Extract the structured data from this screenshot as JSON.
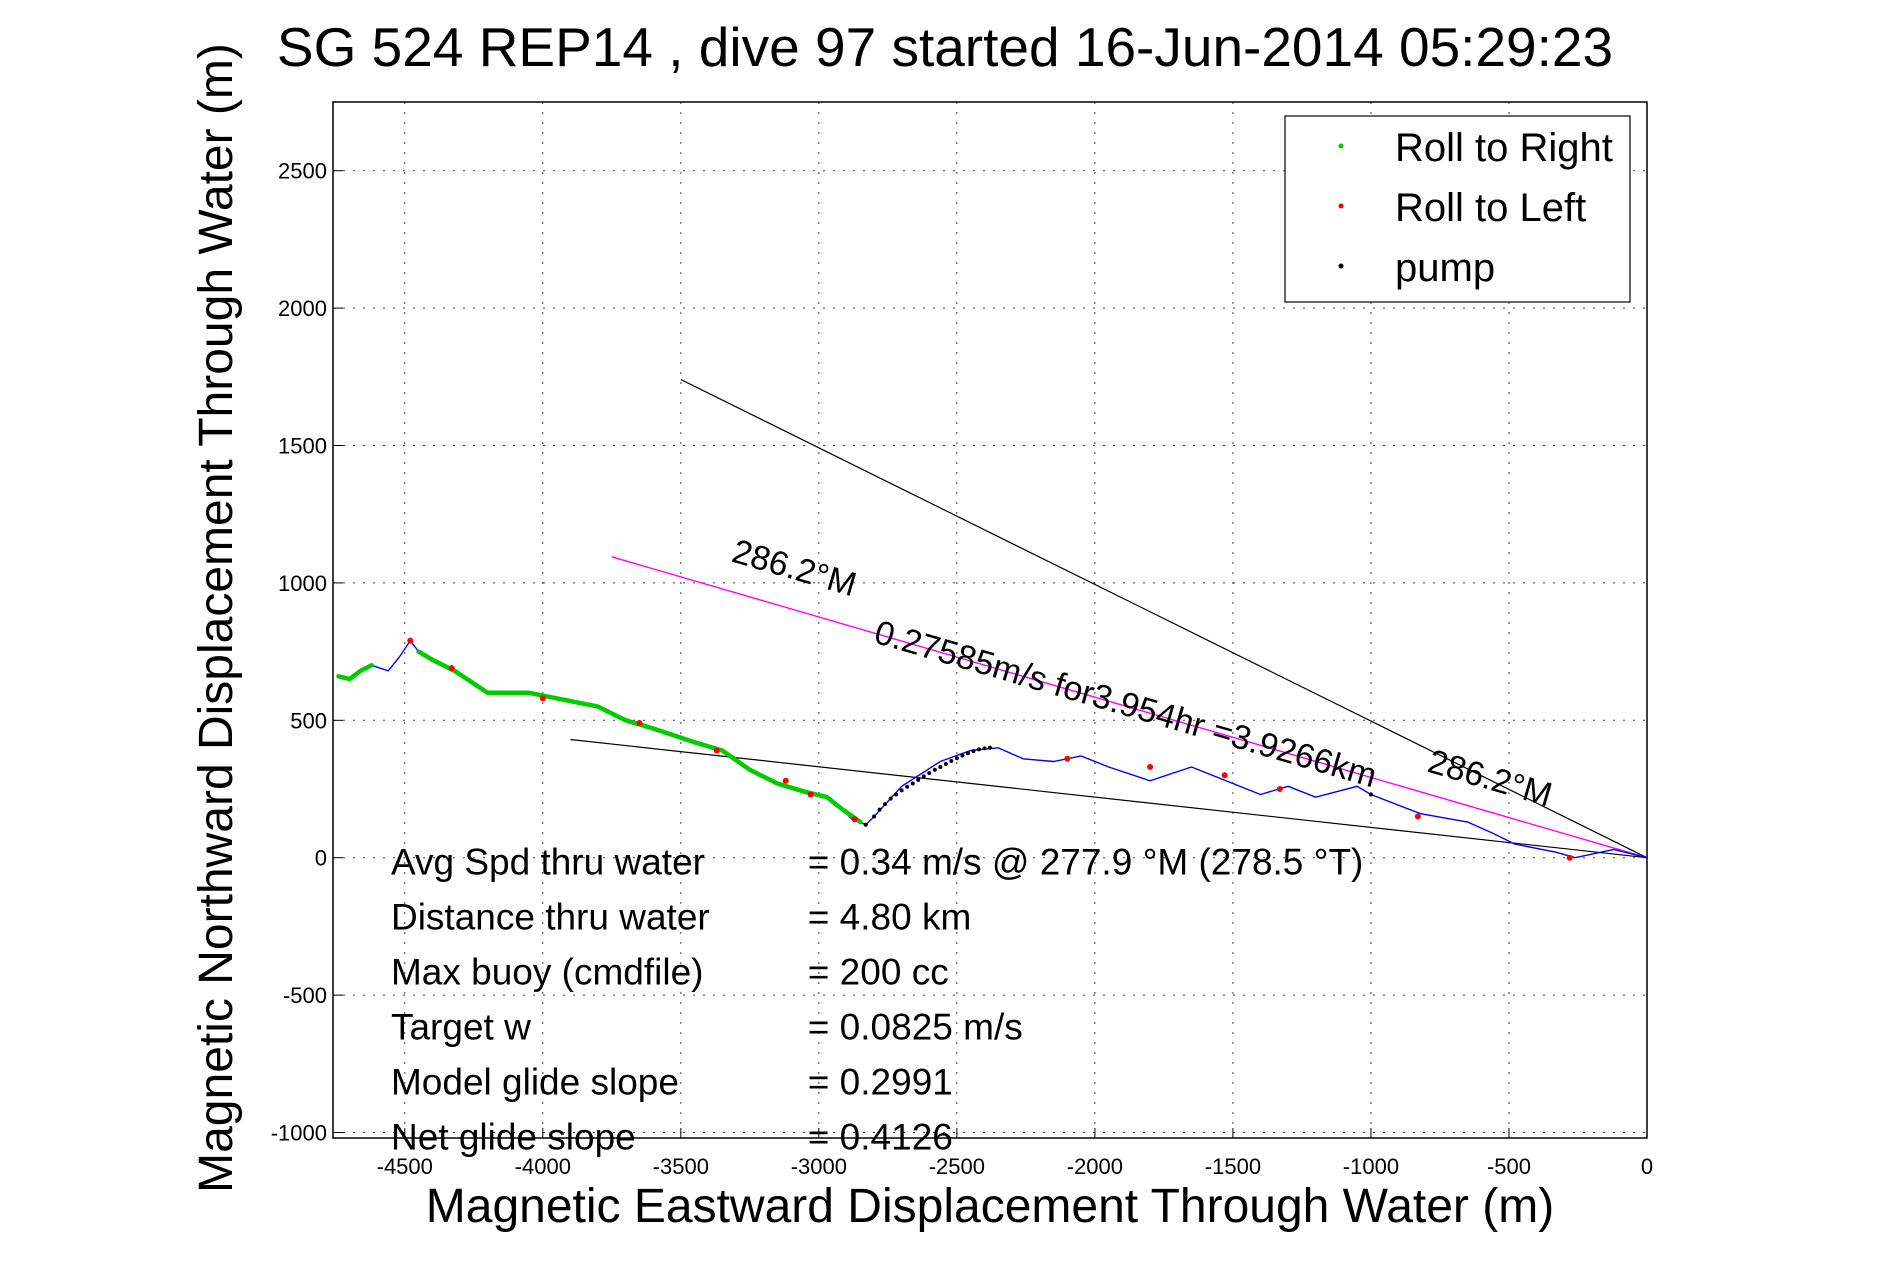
{
  "chart_data": {
    "type": "line",
    "title": "SG 524   REP14  , dive 97 started 16-Jun-2014 05:29:23",
    "xlabel": "Magnetic Eastward Displacement Through Water (m)",
    "ylabel": "Magnetic Northward Displacement Through Water (m)",
    "xlim": [
      -4760,
      0
    ],
    "ylim": [
      -1020,
      2750
    ],
    "xticks": [
      -4500,
      -4000,
      -3500,
      -3000,
      -2500,
      -2000,
      -1500,
      -1000,
      -500,
      0
    ],
    "yticks": [
      -1000,
      -500,
      0,
      500,
      1000,
      1500,
      2000,
      2500
    ],
    "grid": true,
    "legend_position": "top-right",
    "legend": [
      "Roll to Right",
      "Roll to Left",
      "pump"
    ],
    "colors": {
      "roll_right": "#00cc00",
      "roll_left": "#ff0000",
      "pump": "#000000",
      "track": "#0000ff",
      "heading_line": "#ff00ff",
      "reference_line": "#000000"
    },
    "track": {
      "x": [
        0,
        -120,
        -260,
        -330,
        -480,
        -560,
        -650,
        -820,
        -1000,
        -1050,
        -1200,
        -1300,
        -1400,
        -1550,
        -1650,
        -1800,
        -1950,
        -2050,
        -2150,
        -2260,
        -2350,
        -2450,
        -2560,
        -2700,
        -2800,
        -2830,
        -2880,
        -2920,
        -2970,
        -3050,
        -3150,
        -3250,
        -3350,
        -3450,
        -3600,
        -3700,
        -3800,
        -3950,
        -4050,
        -4200,
        -4320,
        -4400,
        -4450,
        -4480,
        -4520,
        -4560,
        -4620,
        -4660,
        -4700,
        -4740
      ],
      "y": [
        0,
        30,
        0,
        20,
        50,
        90,
        130,
        160,
        230,
        260,
        220,
        260,
        230,
        290,
        330,
        280,
        330,
        370,
        350,
        360,
        400,
        390,
        350,
        260,
        150,
        120,
        140,
        180,
        220,
        240,
        270,
        320,
        390,
        420,
        470,
        500,
        550,
        580,
        600,
        600,
        680,
        720,
        750,
        790,
        730,
        680,
        700,
        680,
        650,
        660
      ]
    },
    "roll_right_segments": [
      {
        "x": [
          -2850,
          -2920,
          -2970,
          -3050,
          -3150,
          -3250,
          -3350,
          -3450,
          -3600,
          -3700,
          -3800,
          -3950,
          -4050,
          -4200,
          -4320,
          -4400,
          -4450
        ],
        "y": [
          130,
          180,
          220,
          240,
          270,
          320,
          390,
          420,
          470,
          500,
          550,
          580,
          600,
          600,
          680,
          720,
          750
        ]
      },
      {
        "x": [
          -4620,
          -4660,
          -4700,
          -4740
        ],
        "y": [
          700,
          680,
          650,
          660
        ]
      }
    ],
    "roll_left_points": {
      "x": [
        -280,
        -830,
        -1330,
        -1530,
        -1800,
        -2100,
        -2870,
        -3030,
        -3120,
        -3370,
        -3650,
        -4000,
        -4330,
        -4480
      ],
      "y": [
        0,
        150,
        250,
        300,
        330,
        360,
        140,
        230,
        280,
        390,
        490,
        580,
        690,
        790
      ]
    },
    "pump_points": {
      "x": [
        -2830,
        -2800,
        -2780,
        -2760,
        -2740,
        -2720,
        -2700,
        -2680,
        -2660,
        -2640,
        -2620,
        -2600,
        -2580,
        -2560,
        -2540,
        -2520,
        -2500,
        -2480,
        -2460,
        -2440,
        -2420,
        -2400,
        -2380,
        -1000
      ],
      "y": [
        120,
        150,
        175,
        195,
        215,
        230,
        245,
        258,
        270,
        283,
        296,
        308,
        320,
        330,
        341,
        352,
        362,
        372,
        380,
        388,
        394,
        398,
        400,
        230
      ]
    },
    "heading_line": {
      "x": [
        0,
        -3750
      ],
      "y": [
        0,
        1095
      ],
      "label_near": "286.2°M",
      "label_far": "286.2°M",
      "speed_label": "0.27585m/s for3.954hr =3.9266km"
    },
    "reference_lines": [
      {
        "x": [
          0,
          -3500
        ],
        "y": [
          0,
          1740
        ]
      },
      {
        "x": [
          0,
          -3900
        ],
        "y": [
          0,
          430
        ]
      }
    ]
  },
  "stats": [
    {
      "label": "Avg Spd thru water",
      "value": "=  0.34 m/s @ 277.9 °M (278.5 °T)"
    },
    {
      "label": "Distance thru water",
      "value": "=  4.80 km"
    },
    {
      "label": "Max buoy (cmdfile)",
      "value": "= 200 cc"
    },
    {
      "label": "Target w",
      "value": "= 0.0825 m/s"
    },
    {
      "label": "Model glide slope",
      "value": "= 0.2991"
    },
    {
      "label": "Net glide slope",
      "value": "= 0.4126"
    }
  ]
}
